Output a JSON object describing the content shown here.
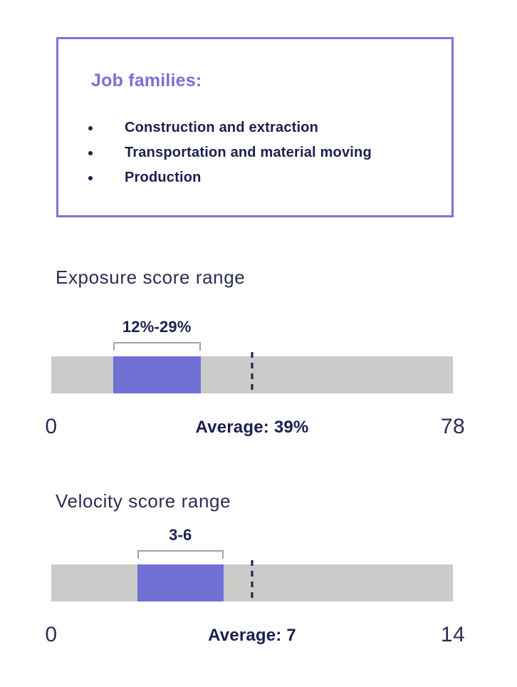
{
  "info_box": {
    "heading": "Job families:",
    "items": [
      "Construction and extraction",
      "Transportation and material moving",
      "Production"
    ]
  },
  "chart_data": [
    {
      "type": "range-bar",
      "title": "Exposure score range",
      "axis_min": 0,
      "axis_max": 78,
      "min_label": "0",
      "max_label": "78",
      "range_low": 12,
      "range_high": 29,
      "range_label": "12%-29%",
      "average": 39,
      "average_label": "Average: 39%",
      "unit": "%"
    },
    {
      "type": "range-bar",
      "title": "Velocity score range",
      "axis_min": 0,
      "axis_max": 14,
      "min_label": "0",
      "max_label": "14",
      "range_low": 3,
      "range_high": 6,
      "range_label": "3-6",
      "average": 7,
      "average_label": "Average: 7",
      "unit": ""
    }
  ],
  "colors": {
    "accent_purple": "#7b74d8",
    "heading_purple": "#7a70d4",
    "segment_purple": "#7170d5",
    "navy_text": "#1b1f51",
    "title_navy": "#2b2d52",
    "bar_gray": "#cbcbca",
    "bracket_gray": "#a3a3a3"
  }
}
